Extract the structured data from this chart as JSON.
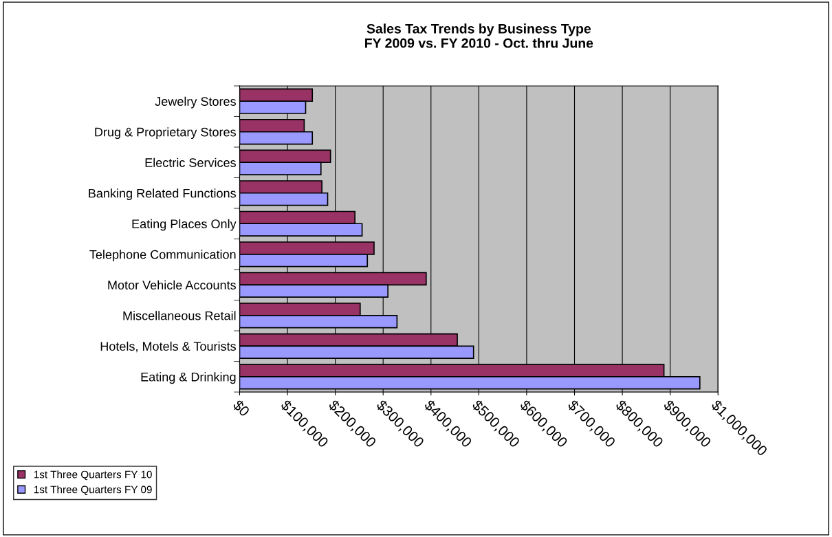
{
  "chart_data": {
    "type": "bar",
    "orientation": "horizontal",
    "title": "Sales Tax Trends by Business Type\nFY 2009 vs. FY 2010 - Oct. thru June",
    "categories": [
      "Jewelry Stores",
      "Drug & Proprietary Stores",
      "Electric Services",
      "Banking Related Functions",
      "Eating Places Only",
      "Telephone Communication",
      "Motor Vehicle Accounts",
      "Miscellaneous Retail",
      "Hotels, Motels & Tourists",
      "Eating & Drinking"
    ],
    "series": [
      {
        "name": "1st Three Quarters FY 10",
        "color": "#993366",
        "values": [
          152000,
          135000,
          190000,
          172000,
          241000,
          281000,
          390000,
          252000,
          455000,
          887000
        ]
      },
      {
        "name": "1st Three Quarters FY 09",
        "color": "#9999ff",
        "values": [
          138000,
          152000,
          170000,
          184000,
          256000,
          267000,
          310000,
          329000,
          489000,
          962000
        ]
      }
    ],
    "xlim": [
      0,
      1000000
    ],
    "xticks": [
      {
        "value": 0,
        "label": "$0"
      },
      {
        "value": 100000,
        "label": "$100,000"
      },
      {
        "value": 200000,
        "label": "$200,000"
      },
      {
        "value": 300000,
        "label": "$300,000"
      },
      {
        "value": 400000,
        "label": "$400,000"
      },
      {
        "value": 500000,
        "label": "$500,000"
      },
      {
        "value": 600000,
        "label": "$600,000"
      },
      {
        "value": 700000,
        "label": "$700,000"
      },
      {
        "value": 800000,
        "label": "$800,000"
      },
      {
        "value": 900000,
        "label": "$900,000"
      },
      {
        "value": 1000000,
        "label": "$1,000,000"
      }
    ],
    "grid": "x",
    "legend": "bottom left"
  }
}
